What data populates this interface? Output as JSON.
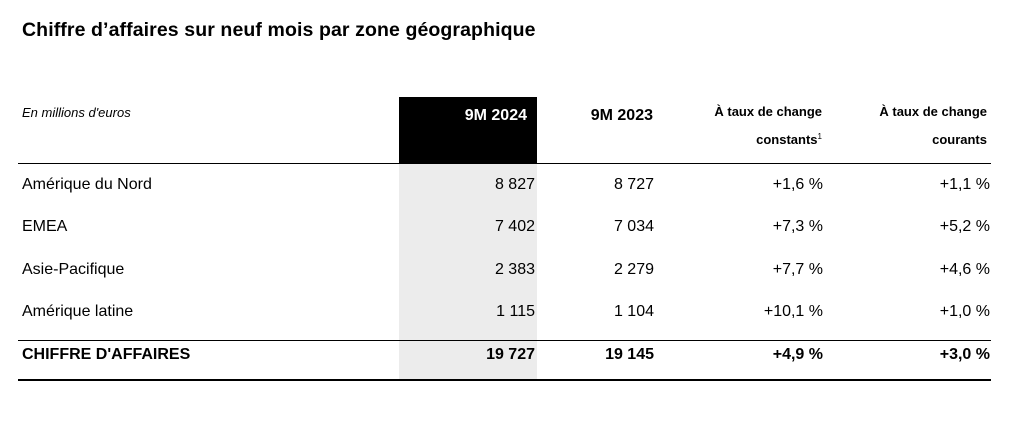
{
  "title": "Chiffre d’affaires sur neuf mois par zone géographique",
  "unit_note": "En millions d'euros",
  "columns": {
    "current": "9M 2024",
    "previous": "9M 2023",
    "constant_line1": "À taux de change",
    "constant_line2": "constants",
    "constant_footnote": "1",
    "current_rates_line1": "À taux de change",
    "current_rates_line2": "courants"
  },
  "rows": [
    {
      "label": "Amérique du Nord",
      "current": "8 827",
      "previous": "8 727",
      "constant": "+1,6 %",
      "current_rates": "+1,1 %"
    },
    {
      "label": "EMEA",
      "current": "7 402",
      "previous": "7 034",
      "constant": "+7,3 %",
      "current_rates": "+5,2 %"
    },
    {
      "label": "Asie-Pacifique",
      "current": "2 383",
      "previous": "2 279",
      "constant": "+7,7 %",
      "current_rates": "+4,6 %"
    },
    {
      "label": "Amérique latine",
      "current": "1 115",
      "previous": "1 104",
      "constant": "+10,1 %",
      "current_rates": "+1,0 %"
    }
  ],
  "total": {
    "label": "CHIFFRE D'AFFAIRES",
    "current": "19 727",
    "previous": "19 145",
    "constant": "+4,9 %",
    "current_rates": "+3,0 %"
  },
  "colors": {
    "highlight_header": "#000000",
    "highlight_column": "#ececec"
  }
}
